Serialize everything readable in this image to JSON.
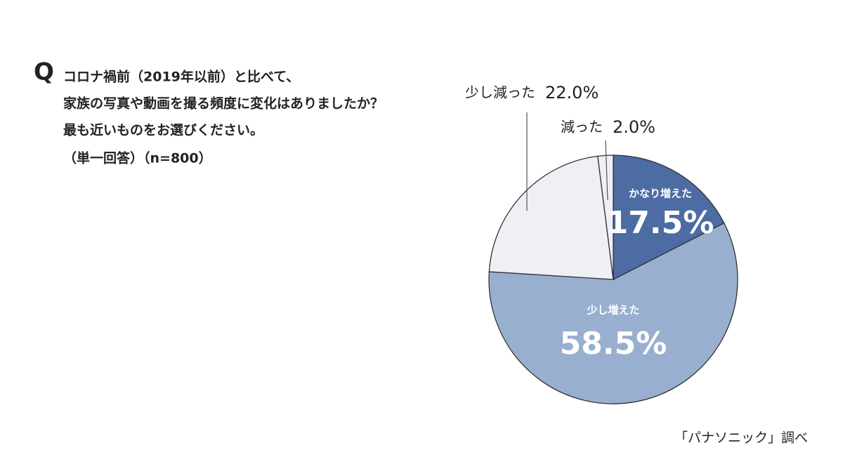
{
  "chart_data": {
    "type": "pie",
    "question_marker": "Q",
    "title_lines": [
      "コロナ禍前（2019年以前）と比べて、",
      "家族の写真や動画を撮る頻度に変化はありましたか？",
      "最も近いものをお選びください。"
    ],
    "subtitle": "（単一回答）（n=800）",
    "categories": [
      "かなり増えた",
      "少し増えた",
      "少し減った",
      "減った"
    ],
    "values": [
      17.5,
      58.5,
      22.0,
      2.0
    ],
    "value_labels": [
      "17.5%",
      "58.5%",
      "22.0%",
      "2.0%"
    ],
    "colors": [
      "#4d6ca3",
      "#99afcf",
      "#eef0f5",
      "#eef0f5"
    ],
    "source": "「パナソニック」調べ"
  }
}
